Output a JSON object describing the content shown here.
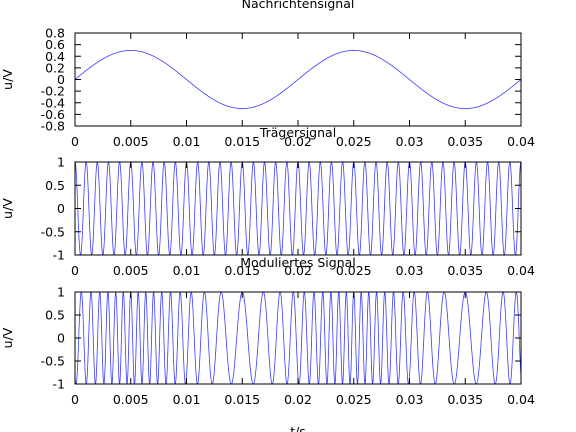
{
  "chart_data": [
    {
      "type": "line",
      "title": "Nachrichtensignal",
      "xlabel": "",
      "ylabel": "u/V",
      "xlim": [
        0,
        0.04
      ],
      "ylim": [
        -0.8,
        0.8
      ],
      "x_ticks": [
        "0",
        "0.005",
        "0.01",
        "0.015",
        "0.02",
        "0.025",
        "0.03",
        "0.035",
        "0.04"
      ],
      "y_ticks": [
        "0.8",
        "0.6",
        "0.4",
        "0.2",
        "0",
        "-0.2",
        "-0.4",
        "-0.6",
        "-0.8"
      ],
      "grid": false,
      "series": [
        {
          "signal": "sine",
          "amplitude": 0.5,
          "frequency_hz": 50,
          "x": [
            0,
            0.005,
            0.01,
            0.015,
            0.02,
            0.025,
            0.03,
            0.035,
            0.04
          ],
          "values": [
            0,
            0.5,
            0,
            -0.5,
            0,
            0.5,
            0,
            -0.5,
            0
          ],
          "color": "#3b3bff"
        }
      ]
    },
    {
      "type": "line",
      "title": "Trägersignal",
      "xlabel": "",
      "ylabel": "u/V",
      "xlim": [
        0,
        0.04
      ],
      "ylim": [
        -1,
        1
      ],
      "x_ticks": [
        "0",
        "0.005",
        "0.01",
        "0.015",
        "0.02",
        "0.025",
        "0.03",
        "0.035",
        "0.04"
      ],
      "y_ticks": [
        "1",
        "0.5",
        "0",
        "-0.5",
        "-1"
      ],
      "grid": false,
      "series": [
        {
          "signal": "cosine",
          "amplitude": 1,
          "frequency_hz": 1000,
          "color": "#3b3bff"
        }
      ]
    },
    {
      "type": "line",
      "title": "Moduliertes Signal",
      "xlabel": "t/s",
      "ylabel": "u/V",
      "xlim": [
        0,
        0.04
      ],
      "ylim": [
        -1,
        1
      ],
      "x_ticks": [
        "0",
        "0.005",
        "0.01",
        "0.015",
        "0.02",
        "0.025",
        "0.03",
        "0.035",
        "0.04"
      ],
      "y_ticks": [
        "1",
        "0.5",
        "0",
        "-0.5",
        "-1"
      ],
      "grid": false,
      "series": [
        {
          "signal": "fm",
          "amplitude": 1,
          "carrier_frequency_hz": 1000,
          "message_amplitude": 0.5,
          "message_frequency_hz": 50,
          "frequency_deviation_hz": 1000,
          "color": "#3b3bff"
        }
      ]
    }
  ]
}
